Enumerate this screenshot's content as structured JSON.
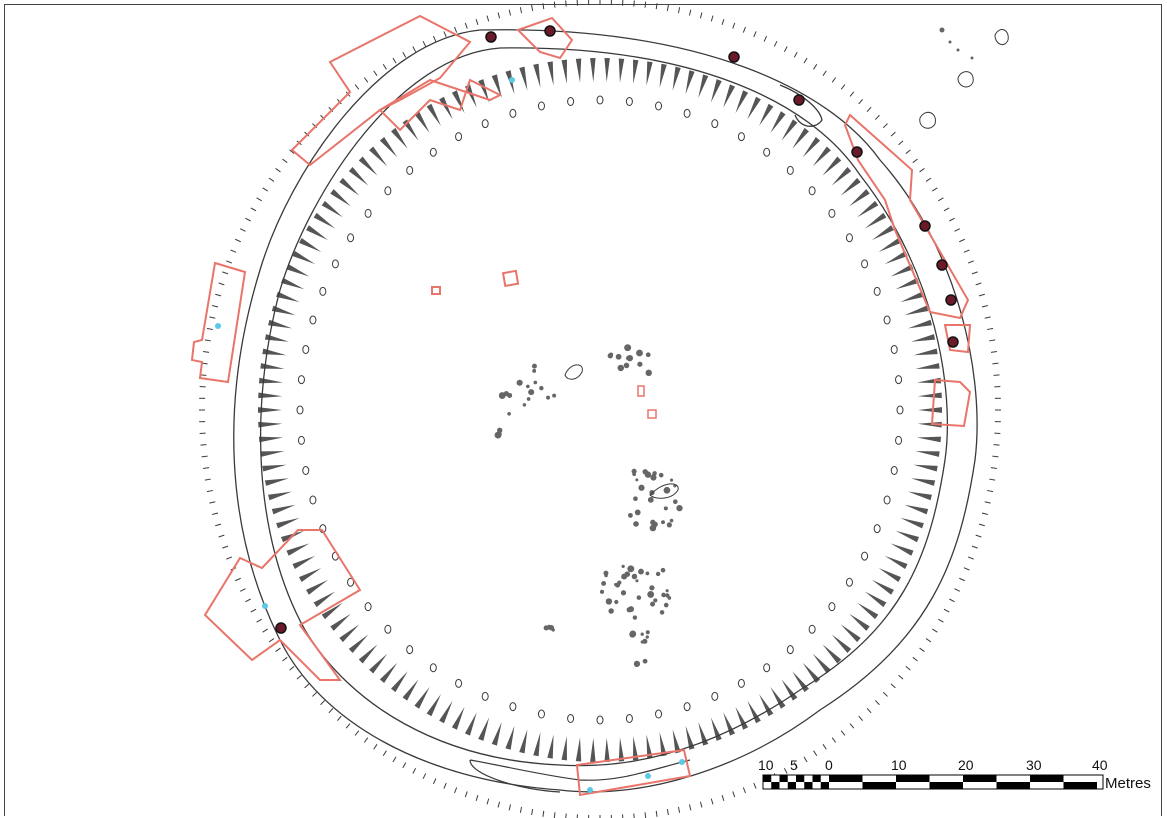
{
  "scale_bar": {
    "labels": [
      "10",
      "5",
      "0",
      "10",
      "20",
      "30",
      "40"
    ],
    "unit": "Metres"
  },
  "colors": {
    "plan_line": "#3a3a3a",
    "trench_outline": "#e8746a",
    "feature_fill": "#6b1a2a",
    "water_feature": "#5bc8e6",
    "post_hole": "#666666"
  }
}
